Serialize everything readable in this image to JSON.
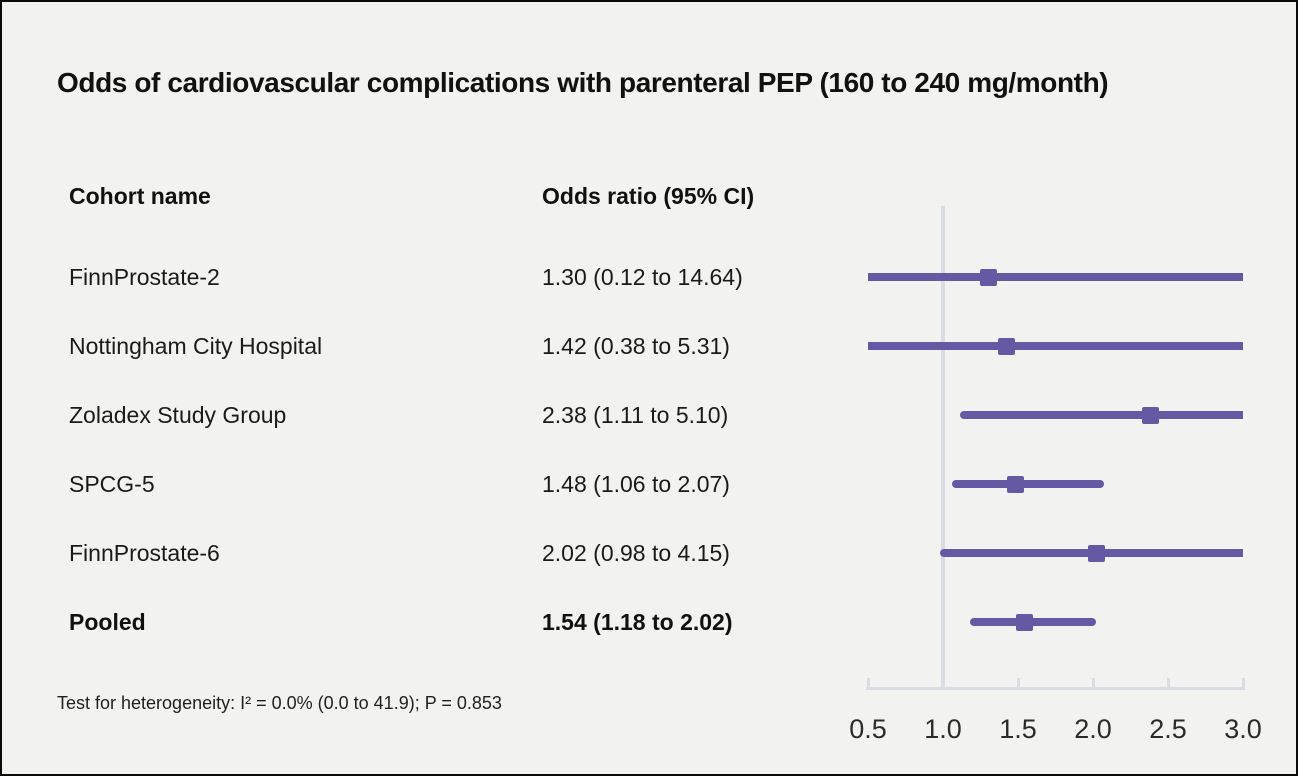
{
  "title": "Odds of cardiovascular complications with parenteral PEP (160 to 240 mg/month)",
  "table": {
    "cohort_header": "Cohort name",
    "or_header": "Odds ratio (95% CI)"
  },
  "footnote": "Test for heterogeneity: I² = 0.0% (0.0 to 41.9); P = 0.853",
  "colors": {
    "background": "#f2f2f0",
    "accent_purple": "#6659a4",
    "axis_gray": "#d9dde3",
    "text": "#1a1a1a"
  },
  "chart_data": {
    "type": "forest",
    "title": "Odds of cardiovascular complications with parenteral PEP (160 to 240 mg/month)",
    "xlabel": "",
    "ylabel": "",
    "x_axis": {
      "min": 0.5,
      "max": 3.0,
      "tick_values": [
        0.5,
        1.0,
        1.5,
        2.0,
        2.5,
        3.0
      ],
      "tick_labels": [
        "0.5",
        "1.0",
        "1.5",
        "2.0",
        "2.5",
        "3.0"
      ],
      "reference_value": 1.0,
      "scale": "linear",
      "grid": false
    },
    "rows": [
      {
        "cohort": "FinnProstate-2",
        "label": "1.30 (0.12 to 14.64)",
        "or": 1.3,
        "ci_low": 0.12,
        "ci_high": 14.64,
        "pooled": false
      },
      {
        "cohort": "Nottingham City Hospital",
        "label": "1.42 (0.38 to 5.31)",
        "or": 1.42,
        "ci_low": 0.38,
        "ci_high": 5.31,
        "pooled": false
      },
      {
        "cohort": "Zoladex Study Group",
        "label": "2.38 (1.11 to 5.10)",
        "or": 2.38,
        "ci_low": 1.11,
        "ci_high": 5.1,
        "pooled": false
      },
      {
        "cohort": "SPCG-5",
        "label": "1.48 (1.06 to 2.07)",
        "or": 1.48,
        "ci_low": 1.06,
        "ci_high": 2.07,
        "pooled": false
      },
      {
        "cohort": "FinnProstate-6",
        "label": "2.02 (0.98 to 4.15)",
        "or": 2.02,
        "ci_low": 0.98,
        "ci_high": 4.15,
        "pooled": false
      },
      {
        "cohort": "Pooled",
        "label": "1.54 (1.18 to 2.02)",
        "or": 1.54,
        "ci_low": 1.18,
        "ci_high": 2.02,
        "pooled": true
      }
    ]
  }
}
